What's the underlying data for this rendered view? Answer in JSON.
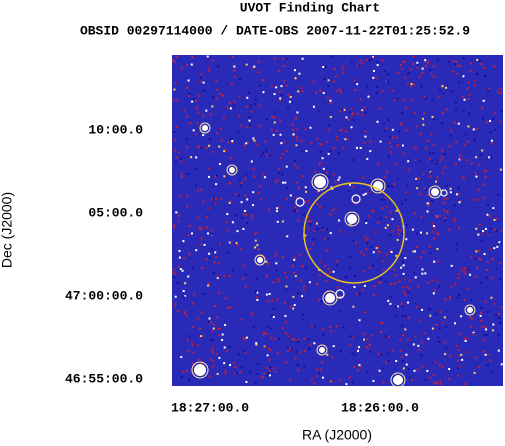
{
  "chart_data": {
    "type": "image",
    "title": "UVOT Finding Chart",
    "subtitle": "OBSID 00297114000 / DATE-OBS 2007-11-22T01:25:52.9",
    "x_label": "RA (J2000)",
    "y_label": "Dec (J2000)",
    "xlim": [
      276.806,
      276.319
    ],
    "xticks": [
      {
        "value": 276.75,
        "label": "18:27:00.0"
      },
      {
        "value": 276.5,
        "label": "18:26:00.0"
      }
    ],
    "ylim": [
      46.9096,
      47.242
    ],
    "yticks": [
      {
        "value": 46.9167,
        "label": "46:55:00.0"
      },
      {
        "value": 47.0,
        "label": "47:00:00.0"
      },
      {
        "value": 47.0833,
        "label": "05:00.0"
      },
      {
        "value": 47.1667,
        "label": "10:00.0"
      }
    ]
  }
}
